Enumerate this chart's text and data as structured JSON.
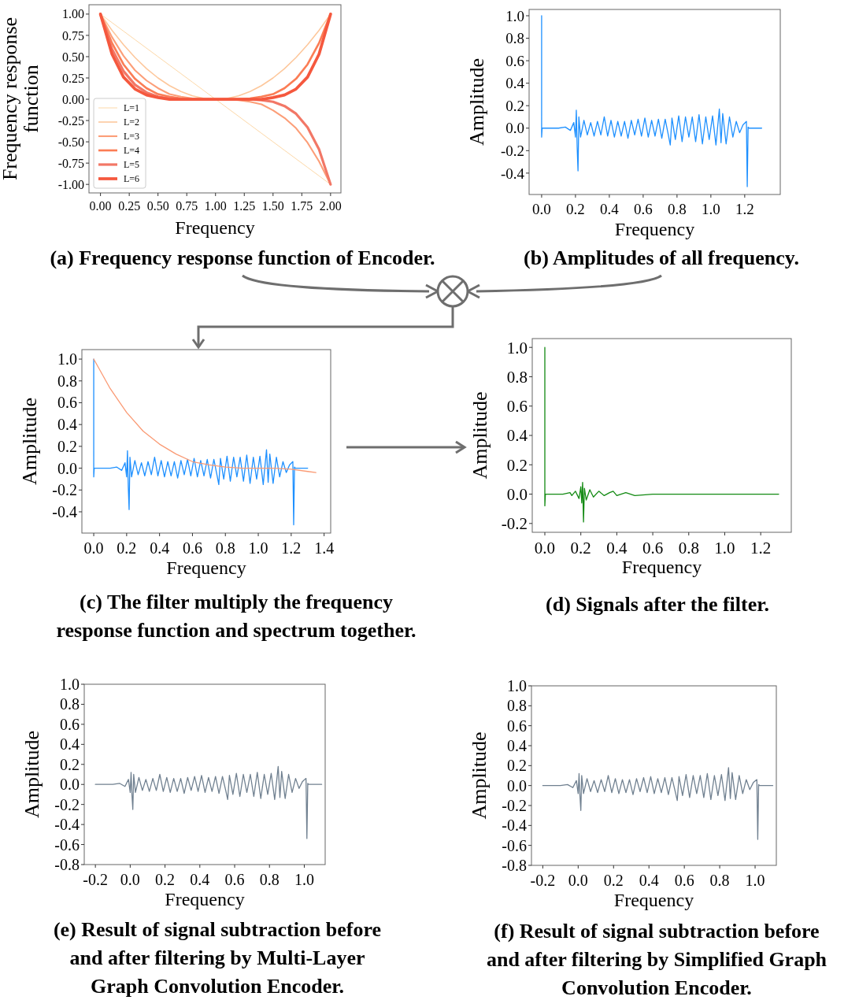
{
  "chart_data": [
    {
      "type": "line",
      "title": "(a) Frequency response function of Encoder.",
      "xlabel": "Frequency",
      "ylabel": "Frequency response function",
      "xlim": [
        -0.1,
        2.09
      ],
      "ylim": [
        -1.1,
        1.11
      ],
      "xticks": [
        {
          "value": 0,
          "label": "0.00"
        },
        {
          "value": 0.25,
          "label": "0.25"
        },
        {
          "value": 0.5,
          "label": "0.50"
        },
        {
          "value": 0.75,
          "label": "0.75"
        },
        {
          "value": 1,
          "label": "1.00"
        },
        {
          "value": 1.25,
          "label": "1.25"
        },
        {
          "value": 1.5,
          "label": "1.50"
        },
        {
          "value": 1.75,
          "label": "1.75"
        },
        {
          "value": 2,
          "label": "2.00"
        }
      ],
      "yticks": [
        {
          "value": 1,
          "label": "1.00"
        },
        {
          "value": 0.75,
          "label": "0.75"
        },
        {
          "value": 0.5,
          "label": "0.50"
        },
        {
          "value": 0.25,
          "label": "0.25"
        },
        {
          "value": 0,
          "label": "0.00"
        },
        {
          "value": -0.25,
          "label": "-0.25"
        },
        {
          "value": -0.5,
          "label": "-0.50"
        },
        {
          "value": -0.75,
          "label": "-0.75"
        },
        {
          "value": -1,
          "label": "-1.00"
        }
      ],
      "legend": "bottom left",
      "x": [
        0,
        0.1,
        0.2,
        0.3,
        0.4,
        0.5,
        0.6,
        0.7,
        0.8,
        0.9,
        1.0,
        1.1,
        1.2,
        1.3,
        1.4,
        1.5,
        1.6,
        1.7,
        1.8,
        1.9,
        2.0
      ],
      "series": [
        {
          "name": "L=1",
          "color": "#fdd8a8",
          "values": [
            1,
            0.9,
            0.8,
            0.7,
            0.6,
            0.5,
            0.4,
            0.3,
            0.2,
            0.1,
            0,
            -0.1,
            -0.2,
            -0.3,
            -0.4,
            -0.5,
            -0.6,
            -0.7,
            -0.8,
            -0.9,
            -1
          ]
        },
        {
          "name": "L=2",
          "color": "#fdc79b",
          "values": [
            1,
            0.81,
            0.64,
            0.49,
            0.36,
            0.25,
            0.16,
            0.09,
            0.04,
            0.01,
            0,
            0.01,
            0.04,
            0.09,
            0.16,
            0.25,
            0.36,
            0.49,
            0.64,
            0.81,
            1
          ]
        },
        {
          "name": "L=3",
          "color": "#fc9e78",
          "values": [
            1,
            0.73,
            0.51,
            0.34,
            0.22,
            0.13,
            0.06,
            0.03,
            0.01,
            0,
            0,
            0,
            -0.01,
            -0.03,
            -0.06,
            -0.13,
            -0.22,
            -0.34,
            -0.51,
            -0.73,
            -1
          ]
        },
        {
          "name": "L=4",
          "color": "#fb7d55",
          "values": [
            1,
            0.66,
            0.41,
            0.24,
            0.13,
            0.06,
            0.03,
            0.01,
            0,
            0,
            0,
            0,
            0,
            0.01,
            0.03,
            0.06,
            0.13,
            0.24,
            0.41,
            0.66,
            1
          ]
        },
        {
          "name": "L=5",
          "color": "#f27766",
          "values": [
            1,
            0.59,
            0.33,
            0.17,
            0.08,
            0.03,
            0.01,
            0,
            0,
            0,
            0,
            0,
            0,
            0,
            -0.01,
            -0.03,
            -0.08,
            -0.17,
            -0.33,
            -0.59,
            -1
          ]
        },
        {
          "name": "L=6",
          "color": "#f5583e",
          "values": [
            1,
            0.53,
            0.26,
            0.12,
            0.05,
            0.02,
            0,
            0,
            0,
            0,
            0,
            0,
            0,
            0,
            0,
            0.02,
            0.05,
            0.12,
            0.26,
            0.53,
            1
          ]
        }
      ]
    },
    {
      "type": "line",
      "title": "(b) Amplitudes of all frequency.",
      "xlabel": "Frequency",
      "ylabel": "Amplitude",
      "xlim": [
        -0.074,
        1.41
      ],
      "ylim": [
        -0.59,
        1.056
      ],
      "xticks": [
        {
          "value": 0,
          "label": "0.0"
        },
        {
          "value": 0.2,
          "label": "0.2"
        },
        {
          "value": 0.4,
          "label": "0.4"
        },
        {
          "value": 0.6,
          "label": "0.6"
        },
        {
          "value": 0.8,
          "label": "0.8"
        },
        {
          "value": 1,
          "label": "1.0"
        },
        {
          "value": 1.2,
          "label": "1.2"
        }
      ],
      "yticks": [
        {
          "value": 1,
          "label": "1.0"
        },
        {
          "value": 0.8,
          "label": "0.8"
        },
        {
          "value": 0.6,
          "label": "0.6"
        },
        {
          "value": 0.4,
          "label": "0.4"
        },
        {
          "value": 0.2,
          "label": "0.2"
        },
        {
          "value": 0,
          "label": "0.0"
        },
        {
          "value": -0.2,
          "label": "-0.2"
        },
        {
          "value": -0.4,
          "label": "-0.4"
        }
      ],
      "x": [
        0,
        0,
        0.003,
        0.01,
        0.1,
        0.14,
        0.17,
        0.19,
        0.2,
        0.205,
        0.21,
        0.215,
        0.22,
        0.23,
        0.25,
        0.27,
        0.29,
        0.31,
        0.33,
        0.35,
        0.37,
        0.39,
        0.41,
        0.43,
        0.45,
        0.47,
        0.49,
        0.51,
        0.53,
        0.55,
        0.57,
        0.59,
        0.61,
        0.63,
        0.65,
        0.67,
        0.69,
        0.71,
        0.73,
        0.75,
        0.76,
        0.77,
        0.79,
        0.81,
        0.83,
        0.85,
        0.87,
        0.89,
        0.91,
        0.93,
        0.95,
        0.97,
        0.99,
        1.01,
        1.03,
        1.05,
        1.06,
        1.07,
        1.09,
        1.11,
        1.13,
        1.15,
        1.17,
        1.19,
        1.21,
        1.215,
        1.22,
        1.225,
        1.23,
        1.25,
        1.3
      ],
      "series": [
        {
          "color": "#1e90ff",
          "values": [
            1.0,
            -0.08,
            0,
            0,
            0,
            0.01,
            -0.02,
            0.05,
            -0.08,
            0.16,
            -0.17,
            -0.38,
            0.1,
            -0.08,
            0.07,
            -0.06,
            0.05,
            -0.07,
            0.06,
            -0.06,
            0.1,
            -0.07,
            0.07,
            -0.08,
            0.06,
            -0.07,
            0.06,
            -0.09,
            0.07,
            -0.06,
            0.08,
            -0.07,
            0.09,
            -0.08,
            0.07,
            -0.07,
            0.08,
            -0.09,
            0.08,
            -0.07,
            -0.15,
            0.09,
            -0.1,
            0.11,
            -0.12,
            0.1,
            -0.08,
            0.1,
            -0.12,
            0.12,
            -0.14,
            0.1,
            -0.1,
            0.11,
            -0.15,
            0.17,
            -0.13,
            0.13,
            -0.14,
            0.1,
            -0.08,
            0.06,
            -0.04,
            0.03,
            0.06,
            -0.52,
            0.01,
            0,
            0,
            0,
            0
          ]
        }
      ]
    },
    {
      "type": "line",
      "title": "(c) The filter multiply the frequency response function and spectrum together.",
      "xlabel": "Frequency",
      "ylabel": "Amplitude",
      "xlim": [
        -0.072,
        1.44
      ],
      "ylim": [
        -0.595,
        1.087
      ],
      "xticks": [
        {
          "value": 0,
          "label": "0.0"
        },
        {
          "value": 0.2,
          "label": "0.2"
        },
        {
          "value": 0.4,
          "label": "0.4"
        },
        {
          "value": 0.6,
          "label": "0.6"
        },
        {
          "value": 0.8,
          "label": "0.8"
        },
        {
          "value": 1,
          "label": "1.0"
        },
        {
          "value": 1.2,
          "label": "1.2"
        },
        {
          "value": 1.4,
          "label": "1.4"
        }
      ],
      "yticks": [
        {
          "value": 1,
          "label": "1.0"
        },
        {
          "value": 0.8,
          "label": "0.8"
        },
        {
          "value": 0.6,
          "label": "0.6"
        },
        {
          "value": 0.4,
          "label": "0.4"
        },
        {
          "value": 0.2,
          "label": "0.2"
        },
        {
          "value": 0,
          "label": "0.0"
        },
        {
          "value": -0.2,
          "label": "-0.2"
        },
        {
          "value": -0.4,
          "label": "-0.4"
        }
      ],
      "series": [
        {
          "color": "#1e90ff",
          "x": [
            0,
            0,
            0.003,
            0.01,
            0.1,
            0.14,
            0.17,
            0.19,
            0.2,
            0.205,
            0.21,
            0.215,
            0.22,
            0.23,
            0.25,
            0.27,
            0.29,
            0.31,
            0.33,
            0.35,
            0.37,
            0.39,
            0.41,
            0.43,
            0.45,
            0.47,
            0.49,
            0.51,
            0.53,
            0.55,
            0.57,
            0.59,
            0.61,
            0.63,
            0.65,
            0.67,
            0.69,
            0.71,
            0.73,
            0.75,
            0.76,
            0.77,
            0.79,
            0.81,
            0.83,
            0.85,
            0.87,
            0.89,
            0.91,
            0.93,
            0.95,
            0.97,
            0.99,
            1.01,
            1.03,
            1.05,
            1.06,
            1.07,
            1.09,
            1.11,
            1.13,
            1.15,
            1.17,
            1.19,
            1.21,
            1.215,
            1.22,
            1.225,
            1.23,
            1.25,
            1.3
          ],
          "values": [
            1.0,
            -0.08,
            0,
            0,
            0,
            0.01,
            -0.02,
            0.05,
            -0.08,
            0.16,
            -0.17,
            -0.38,
            0.1,
            -0.08,
            0.07,
            -0.06,
            0.05,
            -0.07,
            0.06,
            -0.06,
            0.1,
            -0.07,
            0.07,
            -0.08,
            0.06,
            -0.07,
            0.06,
            -0.09,
            0.07,
            -0.06,
            0.08,
            -0.07,
            0.09,
            -0.08,
            0.07,
            -0.07,
            0.08,
            -0.09,
            0.08,
            -0.07,
            -0.15,
            0.09,
            -0.1,
            0.11,
            -0.12,
            0.1,
            -0.08,
            0.1,
            -0.12,
            0.12,
            -0.14,
            0.1,
            -0.1,
            0.11,
            -0.15,
            0.17,
            -0.13,
            0.13,
            -0.14,
            0.1,
            -0.08,
            0.06,
            -0.04,
            0.03,
            0.06,
            -0.52,
            0.01,
            0,
            0,
            0,
            0
          ]
        },
        {
          "color": "#fa9a74",
          "x": [
            0,
            0.1,
            0.2,
            0.3,
            0.4,
            0.5,
            0.6,
            0.7,
            0.8,
            0.9,
            1.0,
            1.1,
            1.2,
            1.3,
            1.35
          ],
          "values": [
            1,
            0.73,
            0.51,
            0.34,
            0.22,
            0.13,
            0.06,
            0.03,
            0.01,
            0,
            0,
            0,
            -0.01,
            -0.03,
            -0.04
          ]
        }
      ]
    },
    {
      "type": "line",
      "title": "(d) Signals after the filter.",
      "xlabel": "Frequency",
      "ylabel": "Amplitude",
      "xlim": [
        -0.07,
        1.37
      ],
      "ylim": [
        -0.26,
        1.06
      ],
      "xticks": [
        {
          "value": 0,
          "label": "0.0"
        },
        {
          "value": 0.2,
          "label": "0.2"
        },
        {
          "value": 0.4,
          "label": "0.4"
        },
        {
          "value": 0.6,
          "label": "0.6"
        },
        {
          "value": 0.8,
          "label": "0.8"
        },
        {
          "value": 1,
          "label": "1.0"
        },
        {
          "value": 1.2,
          "label": "1.2"
        }
      ],
      "yticks": [
        {
          "value": 1,
          "label": "1.0"
        },
        {
          "value": 0.8,
          "label": "0.8"
        },
        {
          "value": 0.6,
          "label": "0.6"
        },
        {
          "value": 0.4,
          "label": "0.4"
        },
        {
          "value": 0.2,
          "label": "0.2"
        },
        {
          "value": 0,
          "label": "0.0"
        },
        {
          "value": -0.2,
          "label": "-0.2"
        }
      ],
      "x": [
        0,
        0,
        0.003,
        0.1,
        0.14,
        0.15,
        0.17,
        0.19,
        0.2,
        0.205,
        0.21,
        0.215,
        0.22,
        0.23,
        0.25,
        0.27,
        0.3,
        0.33,
        0.36,
        0.38,
        0.4,
        0.45,
        0.5,
        0.6,
        0.7,
        1.22,
        1.23,
        1.3
      ],
      "series": [
        {
          "color": "#138a13",
          "values": [
            1.0,
            -0.08,
            0,
            0,
            0.01,
            -0.01,
            0.02,
            -0.03,
            0.05,
            -0.06,
            0.08,
            -0.19,
            0.04,
            -0.04,
            0.03,
            -0.02,
            0.02,
            -0.01,
            0.01,
            0.02,
            -0.01,
            0.01,
            -0.01,
            0,
            0,
            0,
            0,
            0
          ]
        }
      ]
    },
    {
      "type": "line",
      "title": "(e) Result of signal subtraction before and after filtering by Multi-Layer Graph Convolution Encoder.",
      "xlabel": "Frequency",
      "ylabel": "Amplitude",
      "xlim": [
        -0.264,
        1.12
      ],
      "ylim": [
        -0.8,
        1.0
      ],
      "xticks": [
        {
          "value": -0.2,
          "label": "-0.2"
        },
        {
          "value": 0,
          "label": "0.0"
        },
        {
          "value": 0.2,
          "label": "0.2"
        },
        {
          "value": 0.4,
          "label": "0.4"
        },
        {
          "value": 0.6,
          "label": "0.6"
        },
        {
          "value": 0.8,
          "label": "0.8"
        },
        {
          "value": 1,
          "label": "1.0"
        }
      ],
      "yticks": [
        {
          "value": 1,
          "label": "1.0"
        },
        {
          "value": 0.8,
          "label": "0.8"
        },
        {
          "value": 0.6,
          "label": "0.6"
        },
        {
          "value": 0.4,
          "label": "0.4"
        },
        {
          "value": 0.2,
          "label": "0.2"
        },
        {
          "value": 0,
          "label": "0.0"
        },
        {
          "value": -0.2,
          "label": "-0.2"
        },
        {
          "value": -0.4,
          "label": "-0.4"
        },
        {
          "value": -0.6,
          "label": "-0.6"
        },
        {
          "value": -0.8,
          "label": "-0.8"
        }
      ],
      "x": [
        -0.2,
        -0.19,
        -0.1,
        -0.06,
        -0.03,
        -0.01,
        0,
        0.005,
        0.01,
        0.015,
        0.02,
        0.03,
        0.05,
        0.07,
        0.09,
        0.11,
        0.13,
        0.15,
        0.17,
        0.19,
        0.21,
        0.23,
        0.25,
        0.27,
        0.29,
        0.31,
        0.33,
        0.35,
        0.37,
        0.39,
        0.41,
        0.43,
        0.45,
        0.47,
        0.49,
        0.51,
        0.53,
        0.55,
        0.56,
        0.57,
        0.59,
        0.61,
        0.63,
        0.65,
        0.67,
        0.69,
        0.71,
        0.73,
        0.75,
        0.77,
        0.79,
        0.81,
        0.83,
        0.85,
        0.86,
        0.87,
        0.89,
        0.91,
        0.93,
        0.95,
        0.97,
        0.99,
        1.01,
        1.015,
        1.02,
        1.025,
        1.03,
        1.05,
        1.1
      ],
      "series": [
        {
          "color": "#708090",
          "values": [
            0,
            0,
            0,
            0.01,
            -0.02,
            0.05,
            -0.08,
            0.12,
            -0.1,
            -0.25,
            0.1,
            -0.08,
            0.07,
            -0.06,
            0.05,
            -0.07,
            0.06,
            -0.06,
            0.1,
            -0.07,
            0.07,
            -0.08,
            0.06,
            -0.07,
            0.06,
            -0.09,
            0.07,
            -0.06,
            0.08,
            -0.07,
            0.09,
            -0.08,
            0.07,
            -0.07,
            0.08,
            -0.09,
            0.08,
            -0.07,
            -0.15,
            0.09,
            -0.1,
            0.11,
            -0.12,
            0.1,
            -0.08,
            0.1,
            -0.12,
            0.12,
            -0.14,
            0.1,
            -0.1,
            0.11,
            -0.15,
            0.18,
            -0.13,
            0.13,
            -0.14,
            0.1,
            -0.08,
            0.06,
            -0.04,
            0.03,
            0.06,
            -0.54,
            0.01,
            0,
            0,
            0,
            0
          ]
        }
      ]
    },
    {
      "type": "line",
      "title": "(f) Result of signal subtraction before and after filtering by Simplified Graph Convolution Encoder.",
      "xlabel": "Frequency",
      "ylabel": "Amplitude",
      "xlim": [
        -0.264,
        1.12
      ],
      "ylim": [
        -0.8,
        1.0
      ],
      "xticks": [
        {
          "value": -0.2,
          "label": "-0.2"
        },
        {
          "value": 0,
          "label": "0.0"
        },
        {
          "value": 0.2,
          "label": "0.2"
        },
        {
          "value": 0.4,
          "label": "0.4"
        },
        {
          "value": 0.6,
          "label": "0.6"
        },
        {
          "value": 0.8,
          "label": "0.8"
        },
        {
          "value": 1,
          "label": "1.0"
        }
      ],
      "yticks": [
        {
          "value": 1,
          "label": "1.0"
        },
        {
          "value": 0.8,
          "label": "0.8"
        },
        {
          "value": 0.6,
          "label": "0.6"
        },
        {
          "value": 0.4,
          "label": "0.4"
        },
        {
          "value": 0.2,
          "label": "0.2"
        },
        {
          "value": 0,
          "label": "0.0"
        },
        {
          "value": -0.2,
          "label": "-0.2"
        },
        {
          "value": -0.4,
          "label": "-0.4"
        },
        {
          "value": -0.6,
          "label": "-0.6"
        },
        {
          "value": -0.8,
          "label": "-0.8"
        }
      ],
      "x": [
        -0.2,
        -0.19,
        -0.1,
        -0.06,
        -0.03,
        -0.01,
        0,
        0.005,
        0.01,
        0.015,
        0.02,
        0.03,
        0.05,
        0.07,
        0.09,
        0.11,
        0.13,
        0.15,
        0.17,
        0.19,
        0.21,
        0.23,
        0.25,
        0.27,
        0.29,
        0.31,
        0.33,
        0.35,
        0.37,
        0.39,
        0.41,
        0.43,
        0.45,
        0.47,
        0.49,
        0.51,
        0.53,
        0.55,
        0.56,
        0.57,
        0.59,
        0.61,
        0.63,
        0.65,
        0.67,
        0.69,
        0.71,
        0.73,
        0.75,
        0.77,
        0.79,
        0.81,
        0.83,
        0.85,
        0.86,
        0.87,
        0.89,
        0.91,
        0.93,
        0.95,
        0.97,
        0.99,
        1.01,
        1.015,
        1.02,
        1.025,
        1.03,
        1.05,
        1.1
      ],
      "series": [
        {
          "color": "#708090",
          "values": [
            0,
            0,
            0,
            0.01,
            -0.02,
            0.05,
            -0.08,
            0.12,
            -0.1,
            -0.25,
            0.1,
            -0.08,
            0.07,
            -0.06,
            0.05,
            -0.07,
            0.06,
            -0.06,
            0.1,
            -0.07,
            0.07,
            -0.08,
            0.06,
            -0.07,
            0.06,
            -0.09,
            0.07,
            -0.06,
            0.08,
            -0.07,
            0.09,
            -0.08,
            0.07,
            -0.07,
            0.08,
            -0.09,
            0.08,
            -0.07,
            -0.15,
            0.09,
            -0.1,
            0.11,
            -0.12,
            0.1,
            -0.08,
            0.1,
            -0.12,
            0.12,
            -0.14,
            0.1,
            -0.1,
            0.11,
            -0.15,
            0.18,
            -0.13,
            0.13,
            -0.14,
            0.1,
            -0.08,
            0.06,
            -0.04,
            0.03,
            0.06,
            -0.54,
            0.01,
            0,
            0,
            0,
            0
          ]
        }
      ]
    }
  ]
}
